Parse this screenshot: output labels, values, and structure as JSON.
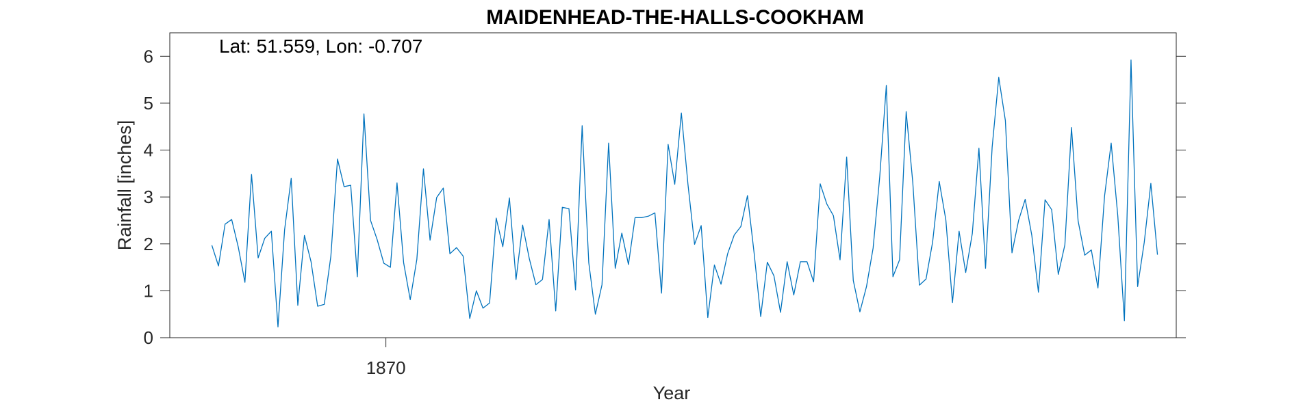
{
  "chart_data": {
    "type": "line",
    "title": "MAIDENHEAD-THE-HALLS-COOKHAM",
    "annotation": "Lat: 51.559, Lon: -0.707",
    "xlabel": "Year",
    "ylabel": "Rainfall [inches]",
    "xlim": [
      1861.83,
      1899.88
    ],
    "ylim": [
      0,
      6.5
    ],
    "x_ticks": [
      1870
    ],
    "x_tick_labels": [
      "1870"
    ],
    "y_ticks": [
      0,
      1,
      2,
      3,
      4,
      5,
      6
    ],
    "y_tick_labels": [
      "0",
      "1",
      "2",
      "3",
      "4",
      "5",
      "6"
    ],
    "grid": false,
    "x_start": 1863.42,
    "x_step": 0.25,
    "series": [
      {
        "color": "#0072BD",
        "values": [
          1.97,
          1.53,
          2.42,
          2.52,
          1.93,
          1.18,
          3.48,
          1.7,
          2.12,
          2.27,
          0.23,
          2.3,
          3.4,
          0.69,
          2.18,
          1.62,
          0.67,
          0.71,
          1.74,
          3.81,
          3.22,
          3.25,
          1.3,
          4.77,
          2.5,
          2.09,
          1.59,
          1.5,
          3.3,
          1.6,
          0.81,
          1.67,
          3.6,
          2.08,
          2.99,
          3.19,
          1.79,
          1.92,
          1.74,
          0.41,
          1.0,
          0.63,
          0.74,
          2.55,
          1.94,
          2.98,
          1.24,
          2.4,
          1.69,
          1.13,
          1.24,
          2.52,
          0.57,
          2.78,
          2.75,
          1.02,
          4.52,
          1.6,
          0.5,
          1.13,
          4.15,
          1.48,
          2.23,
          1.56,
          2.56,
          2.56,
          2.59,
          2.66,
          0.95,
          4.12,
          3.27,
          4.79,
          3.27,
          1.99,
          2.39,
          0.43,
          1.55,
          1.14,
          1.79,
          2.19,
          2.37,
          3.03,
          1.81,
          0.45,
          1.61,
          1.32,
          0.54,
          1.62,
          0.91,
          1.62,
          1.62,
          1.19,
          3.28,
          2.85,
          2.6,
          1.66,
          3.85,
          1.22,
          0.55,
          1.09,
          1.91,
          3.43,
          5.38,
          1.3,
          1.66,
          4.82,
          3.31,
          1.12,
          1.25,
          2.04,
          3.33,
          2.51,
          0.75,
          2.27,
          1.39,
          2.22,
          4.04,
          1.48,
          4.06,
          5.55,
          4.63,
          1.81,
          2.5,
          2.95,
          2.18,
          0.97,
          2.94,
          2.73,
          1.35,
          1.98,
          4.48,
          2.49,
          1.76,
          1.87,
          1.06,
          3.02,
          4.15,
          2.6,
          0.36,
          5.92,
          1.09,
          2.03,
          3.29,
          1.77
        ]
      }
    ]
  }
}
